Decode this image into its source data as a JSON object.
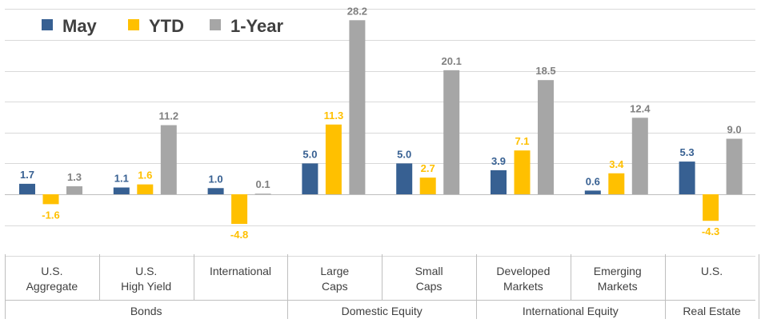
{
  "chart_data": {
    "type": "bar",
    "title": "",
    "xlabel": "",
    "ylabel": "",
    "ylim": [
      -10,
      30
    ],
    "gridlines": [
      -10,
      -5,
      0,
      5,
      10,
      15,
      20,
      25,
      30
    ],
    "legend_position": "top-left",
    "categories": [
      [
        "U.S.",
        "Aggregate"
      ],
      [
        "U.S.",
        "High Yield"
      ],
      [
        "International"
      ],
      [
        "Large",
        "Caps"
      ],
      [
        "Small",
        "Caps"
      ],
      [
        "Developed",
        "Markets"
      ],
      [
        "Emerging",
        "Markets"
      ],
      [
        "U.S."
      ]
    ],
    "groups": [
      {
        "label": "Bonds",
        "span": [
          0,
          2
        ]
      },
      {
        "label": "Domestic Equity",
        "span": [
          3,
          4
        ]
      },
      {
        "label": "International Equity",
        "span": [
          5,
          6
        ]
      },
      {
        "label": "Real Estate",
        "span": [
          7,
          7
        ]
      }
    ],
    "series": [
      {
        "name": "May",
        "color": "#376092",
        "values": [
          1.7,
          1.1,
          1.0,
          5.0,
          5.0,
          3.9,
          0.6,
          5.3
        ]
      },
      {
        "name": "YTD",
        "color": "#FFC000",
        "values": [
          -1.6,
          1.6,
          -4.8,
          11.3,
          2.7,
          7.1,
          3.4,
          -4.3
        ]
      },
      {
        "name": "1-Year",
        "color": "#A6A6A6",
        "values": [
          1.3,
          11.2,
          0.1,
          28.2,
          20.1,
          18.5,
          12.4,
          9.0
        ]
      }
    ],
    "label_colors": [
      "#376092",
      "#FFC000",
      "#808080"
    ]
  }
}
